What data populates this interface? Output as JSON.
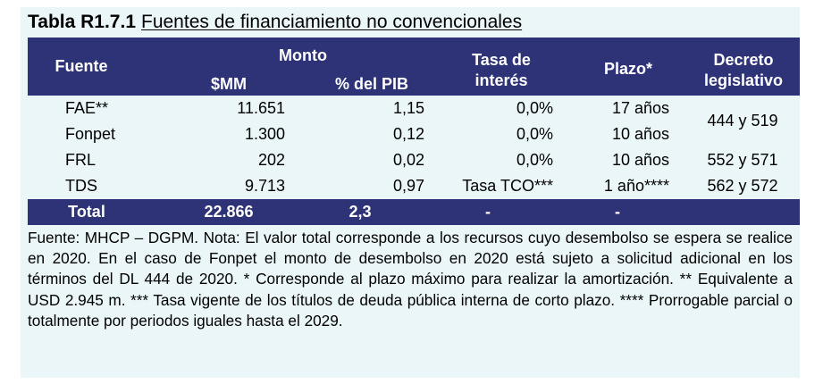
{
  "title": {
    "code": "Tabla R1.7.1",
    "name": "Fuentes de financiamiento no convencionales"
  },
  "header": {
    "fuente": "Fuente",
    "monto": "Monto",
    "mm": "$MM",
    "pib": "% del PIB",
    "tasa_line1": "Tasa de",
    "tasa_line2": "interés",
    "plazo": "Plazo*",
    "decreto_line1": "Decreto",
    "decreto_line2": "legislativo"
  },
  "rows": [
    {
      "fuente": "FAE**",
      "mm": "11.651",
      "pib": "1,15",
      "tasa": "0,0%",
      "plazo": "17 años"
    },
    {
      "fuente": "Fonpet",
      "mm": "1.300",
      "pib": "0,12",
      "tasa": "0,0%",
      "plazo": "10 años"
    },
    {
      "fuente": "FRL",
      "mm": "202",
      "pib": "0,02",
      "tasa": "0,0%",
      "plazo": "10 años",
      "decreto": "552 y 571"
    },
    {
      "fuente": "TDS",
      "mm": "9.713",
      "pib": "0,97",
      "tasa": "Tasa TCO***",
      "plazo": "1 año****",
      "decreto": "562 y 572"
    }
  ],
  "merged_decreto": "444 y 519",
  "total": {
    "label": "Total",
    "mm": "22.866",
    "pib": "2,3",
    "tasa": "-",
    "plazo": "-",
    "decreto": ""
  },
  "notes": "Fuente: MHCP – DGPM. Nota: El valor total corresponde a los recursos cuyo desembolso se espera se realice en 2020. En el caso de Fonpet el monto de desembolso en 2020 está sujeto a solicitud adicional en los términos del DL 444 de 2020. * Corresponde al plazo máximo para realizar la amortización. ** Equivalente a USD 2.945 m. *** Tasa vigente de los títulos de deuda pública interna de corto plazo. **** Prorrogable parcial o totalmente por periodos iguales hasta el 2029.",
  "colors": {
    "header_bg": "#2e3378",
    "panel_bg": "#eaf6f7"
  }
}
